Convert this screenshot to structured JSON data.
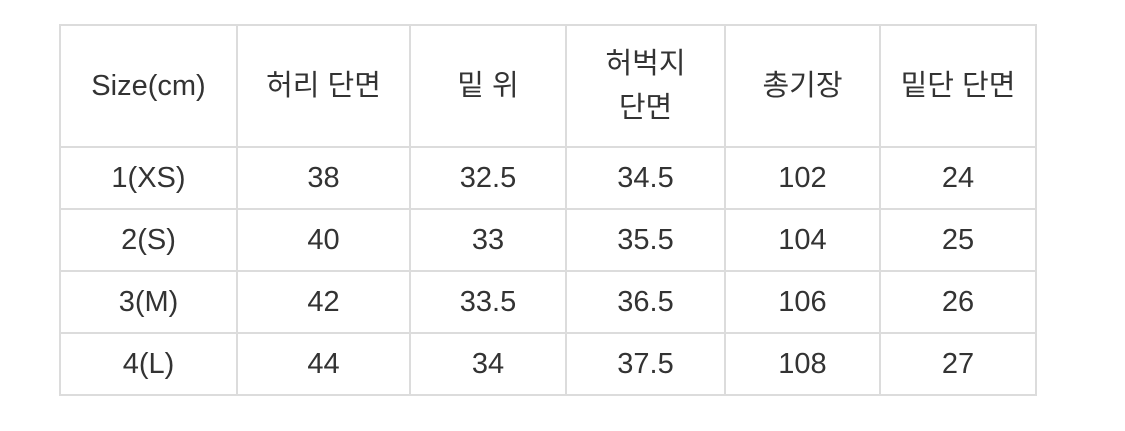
{
  "size_table": {
    "headers": [
      "Size(cm)",
      "허리 단면",
      "밑 위",
      "허벅지 단면",
      "총기장",
      "밑단 단면"
    ],
    "rows": [
      [
        "1(XS)",
        "38",
        "32.5",
        "34.5",
        "102",
        "24"
      ],
      [
        "2(S)",
        "40",
        "33",
        "35.5",
        "104",
        "25"
      ],
      [
        "3(M)",
        "42",
        "33.5",
        "36.5",
        "106",
        "26"
      ],
      [
        "4(L)",
        "44",
        "34",
        "37.5",
        "108",
        "27"
      ]
    ]
  },
  "colors": {
    "border": "#dcdcdc",
    "text": "#333333"
  }
}
